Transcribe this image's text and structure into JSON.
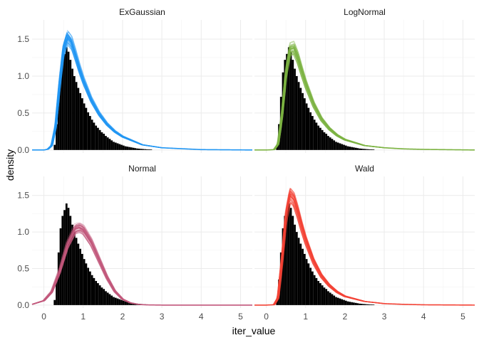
{
  "chart_data": {
    "type": "histogram-with-density-overlays",
    "xlabel": "iter_value",
    "ylabel": "density",
    "xlim": [
      -0.3,
      5.3
    ],
    "ylim": [
      -0.04,
      1.76
    ],
    "x_ticks": [
      0,
      1,
      2,
      3,
      4,
      5
    ],
    "y_ticks": [
      0.0,
      0.5,
      1.0,
      1.5
    ],
    "y_tick_labels": [
      "0.0",
      "0.5",
      "1.0",
      "1.5"
    ],
    "grid": true,
    "legend": "none",
    "colors": {
      "ExGaussian": "#2196F3",
      "LogNormal": "#7CB342",
      "Normal": "#C2577B",
      "Wald": "#F44336",
      "histogram": "#000000"
    },
    "histogram": {
      "bin_width": 0.05,
      "bin_start": 0.25,
      "bin_densities": [
        0.07,
        0.35,
        0.72,
        1.05,
        1.22,
        1.3,
        1.39,
        1.33,
        1.22,
        1.1,
        1.0,
        0.92,
        0.84,
        0.77,
        0.7,
        0.63,
        0.57,
        0.51,
        0.46,
        0.41,
        0.37,
        0.33,
        0.3,
        0.27,
        0.24,
        0.22,
        0.19,
        0.17,
        0.15,
        0.13,
        0.11,
        0.1,
        0.09,
        0.08,
        0.07,
        0.06,
        0.05,
        0.045,
        0.04,
        0.035,
        0.03,
        0.025,
        0.02,
        0.018,
        0.015,
        0.013,
        0.011,
        0.009,
        0.008,
        0.007
      ]
    },
    "panels": [
      {
        "name": "ExGaussian",
        "color": "#2196F3",
        "density_x": [
          -0.3,
          0,
          0.1,
          0.2,
          0.3,
          0.4,
          0.5,
          0.6,
          0.7,
          0.8,
          0.9,
          1.0,
          1.2,
          1.4,
          1.6,
          1.8,
          2.0,
          2.5,
          3.0,
          4.0,
          5.3
        ],
        "density_y": [
          0,
          0,
          0.01,
          0.06,
          0.32,
          0.88,
          1.35,
          1.52,
          1.45,
          1.28,
          1.1,
          0.94,
          0.68,
          0.49,
          0.35,
          0.25,
          0.18,
          0.07,
          0.03,
          0.005,
          0
        ]
      },
      {
        "name": "LogNormal",
        "color": "#7CB342",
        "density_x": [
          -0.3,
          0,
          0.2,
          0.3,
          0.4,
          0.5,
          0.6,
          0.7,
          0.8,
          0.9,
          1.0,
          1.2,
          1.4,
          1.6,
          1.8,
          2.0,
          2.5,
          3.0,
          3.5,
          4.0,
          5.3
        ],
        "density_y": [
          0,
          0,
          0.005,
          0.08,
          0.48,
          1.05,
          1.36,
          1.38,
          1.25,
          1.07,
          0.9,
          0.62,
          0.42,
          0.29,
          0.2,
          0.14,
          0.06,
          0.03,
          0.015,
          0.008,
          0
        ]
      },
      {
        "name": "Normal",
        "color": "#C2577B",
        "density_x": [
          -0.3,
          0,
          0.2,
          0.4,
          0.6,
          0.8,
          0.9,
          1.0,
          1.2,
          1.4,
          1.6,
          1.8,
          2.0,
          2.2,
          2.4,
          2.6,
          3.0,
          5.3
        ],
        "density_y": [
          0.01,
          0.06,
          0.18,
          0.46,
          0.82,
          1.04,
          1.06,
          1.03,
          0.86,
          0.62,
          0.38,
          0.19,
          0.08,
          0.03,
          0.01,
          0.003,
          0,
          0
        ]
      },
      {
        "name": "Wald",
        "color": "#F44336",
        "density_x": [
          -0.3,
          0,
          0.2,
          0.3,
          0.4,
          0.5,
          0.6,
          0.7,
          0.8,
          0.9,
          1.0,
          1.2,
          1.4,
          1.6,
          1.8,
          2.0,
          2.5,
          3.0,
          3.5,
          4.0,
          5.3
        ],
        "density_y": [
          0,
          0,
          0.005,
          0.1,
          0.62,
          1.22,
          1.5,
          1.44,
          1.27,
          1.07,
          0.89,
          0.6,
          0.4,
          0.27,
          0.18,
          0.12,
          0.05,
          0.02,
          0.01,
          0.004,
          0
        ]
      }
    ]
  }
}
